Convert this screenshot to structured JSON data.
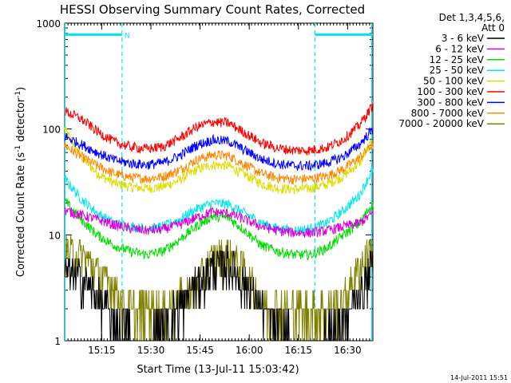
{
  "chart_data": {
    "type": "line",
    "title": "HESSI Observing Summary Count Rates, Corrected",
    "xlabel": "Start Time (13-Jul-11 15:03:42)",
    "ylabel_main": "Corrected Count Rate (s",
    "ylabel_sup1": "-1",
    "ylabel_mid": " detector",
    "ylabel_sup2": "-1",
    "ylabel_end": ")",
    "x_unit": "minutes after 15:03:42",
    "xlim": [
      0,
      94
    ],
    "ylim": [
      1,
      1000
    ],
    "y_scale": "log",
    "x_ticks": [
      {
        "x": 11.3,
        "label": "15:15"
      },
      {
        "x": 26.3,
        "label": "15:30"
      },
      {
        "x": 41.3,
        "label": "15:45"
      },
      {
        "x": 56.3,
        "label": "16:00"
      },
      {
        "x": 71.3,
        "label": "16:15"
      },
      {
        "x": 86.3,
        "label": "16:30"
      }
    ],
    "y_ticks": [
      {
        "y": 1,
        "label": "1"
      },
      {
        "y": 10,
        "label": "10"
      },
      {
        "y": 100,
        "label": "100"
      },
      {
        "y": 1000,
        "label": "1000"
      }
    ],
    "legend_header": [
      "Det 1,3,4,5,6,",
      "Att 0"
    ],
    "legend_placement": "right",
    "timestamp": "14-Jul-2011 15:51",
    "night_mark": "N",
    "night_vlines_x": [
      17.5,
      76.3
    ],
    "day_vlines_x": [
      0,
      93.5
    ],
    "day_bars": [
      {
        "x0": 0,
        "x1": 17.5,
        "y": 780
      },
      {
        "x0": 76.3,
        "x1": 94,
        "y": 780
      }
    ],
    "x": [
      0,
      5,
      10,
      15,
      20,
      25,
      30,
      35,
      40,
      45,
      50,
      55,
      60,
      65,
      70,
      75,
      80,
      85,
      90,
      94
    ],
    "series": [
      {
        "name": "3 - 6 keV",
        "color": "#000000",
        "values": [
          4.5,
          4,
          2.6,
          1.5,
          1.2,
          1,
          1.4,
          2.1,
          3.4,
          5,
          5.3,
          3.6,
          2,
          1.3,
          1,
          1,
          1.2,
          1.5,
          2.8,
          5.5
        ]
      },
      {
        "name": "6 - 12 keV",
        "color": "#dd00dd",
        "values": [
          17,
          15.5,
          14,
          12.5,
          11.5,
          11,
          11.3,
          12.5,
          14.5,
          16.5,
          16,
          14,
          12,
          11,
          10.5,
          10.5,
          11,
          12,
          13,
          16
        ]
      },
      {
        "name": "12 - 25 keV",
        "color": "#00dd00",
        "values": [
          21,
          14,
          10,
          8,
          7,
          6.5,
          7,
          9,
          12,
          15,
          14.5,
          11,
          8,
          7,
          6.5,
          6.5,
          7.5,
          10,
          13,
          20
        ]
      },
      {
        "name": "25 - 50 keV",
        "color": "#00e8e8",
        "values": [
          34,
          22,
          16,
          13,
          12,
          11.5,
          12,
          14,
          17.5,
          20,
          19.5,
          16,
          13,
          11.5,
          11,
          11.5,
          13,
          17,
          24,
          42
        ]
      },
      {
        "name": "50 - 100 keV",
        "color": "#dddd00",
        "values": [
          100,
          55,
          38,
          31,
          28.5,
          27.5,
          28.5,
          33,
          41,
          46,
          45,
          37,
          30.5,
          27.5,
          27,
          27.5,
          30,
          36,
          48,
          78
        ]
      },
      {
        "name": "100 - 300 keV",
        "color": "#ff0000",
        "values": [
          148,
          125,
          95,
          76,
          68,
          65,
          68,
          82,
          104,
          117,
          114,
          92,
          74,
          66,
          63,
          63,
          67,
          80,
          110,
          168
        ]
      },
      {
        "name": "300 - 800 keV",
        "color": "#0000ff",
        "values": [
          85,
          72,
          60,
          51,
          47.5,
          46,
          48,
          56,
          70,
          79,
          77,
          63,
          52,
          47,
          45,
          45,
          48,
          55,
          72,
          100
        ]
      },
      {
        "name": "800 - 7000 keV",
        "color": "#ff8800",
        "values": [
          70,
          55,
          45,
          38,
          35,
          34,
          35.5,
          41,
          51,
          57,
          56,
          46,
          38,
          34.5,
          33.5,
          34,
          36,
          42,
          54,
          72
        ]
      },
      {
        "name": "7000 - 20000 keV",
        "color": "#808000",
        "values": [
          7,
          6.5,
          4.5,
          3.2,
          2,
          2,
          2,
          2.5,
          3.2,
          5.8,
          6.5,
          4.8,
          2.2,
          2,
          2,
          2,
          2,
          2.4,
          5,
          8
        ]
      }
    ]
  }
}
